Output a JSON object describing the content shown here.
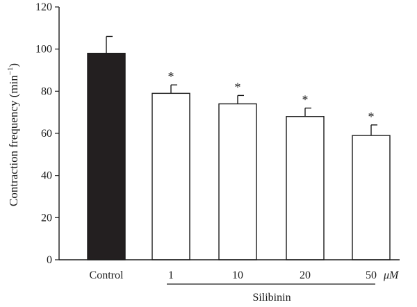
{
  "chart_data": {
    "type": "bar",
    "title": "",
    "ylabel": "Contraction frequency (min",
    "ylabel_superscript": "−1",
    "ylabel_close": ")",
    "xlabel": "",
    "ylim": [
      0,
      120
    ],
    "yticks": [
      0,
      20,
      40,
      60,
      80,
      100,
      120
    ],
    "grid": false,
    "legend": "none",
    "categories": [
      "Control",
      "1",
      "10",
      "20",
      "50"
    ],
    "values": [
      98,
      79,
      74,
      68,
      59
    ],
    "errors": [
      8,
      4,
      4,
      4,
      5
    ],
    "significance": [
      "",
      "*",
      "*",
      "*",
      "*"
    ],
    "bar_fills": [
      "#231f20",
      "#ffffff",
      "#ffffff",
      "#ffffff",
      "#ffffff"
    ],
    "unit_label": "μM",
    "group_label": "Silibinin"
  }
}
